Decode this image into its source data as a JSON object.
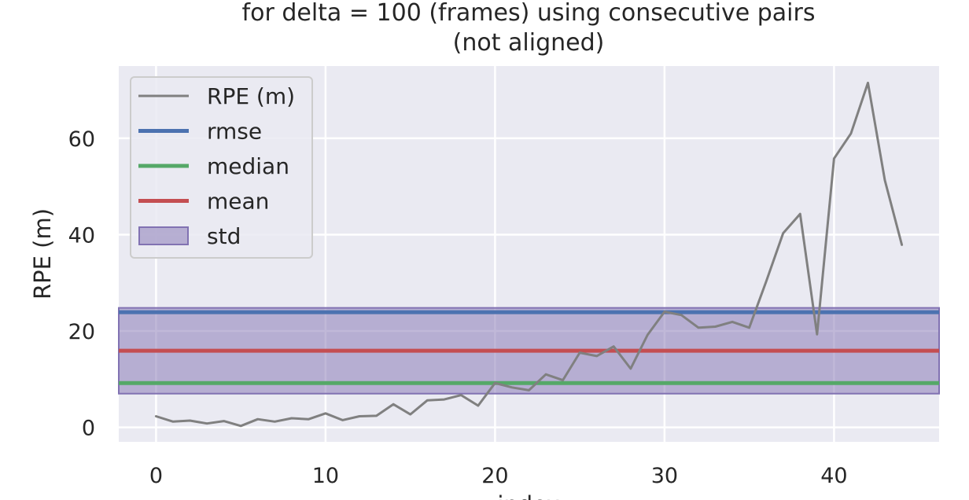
{
  "chart_data": {
    "type": "line",
    "title_lines": [
      "for delta = 100 (frames) using consecutive pairs",
      "(not aligned)"
    ],
    "xlabel": "index",
    "ylabel": "RPE (m)",
    "xlim": [
      -2.2,
      46.2
    ],
    "ylim": [
      -3,
      75
    ],
    "xticks": [
      0,
      10,
      20,
      30,
      40
    ],
    "yticks": [
      0,
      20,
      40,
      60
    ],
    "grid": true,
    "legend_position": "upper-left",
    "series": [
      {
        "name": "RPE (m)",
        "color": "#808080",
        "x": [
          0,
          1,
          2,
          3,
          4,
          5,
          6,
          7,
          8,
          9,
          10,
          11,
          12,
          13,
          14,
          15,
          16,
          17,
          18,
          19,
          20,
          21,
          22,
          23,
          24,
          25,
          26,
          27,
          28,
          29,
          30,
          31,
          32,
          33,
          34,
          35,
          36,
          37,
          38,
          39,
          40,
          41,
          42,
          43,
          44
        ],
        "y": [
          2.3,
          1.2,
          1.4,
          0.8,
          1.3,
          0.3,
          1.7,
          1.2,
          1.9,
          1.7,
          2.9,
          1.5,
          2.3,
          2.4,
          4.8,
          2.7,
          5.6,
          5.8,
          6.7,
          4.5,
          9.2,
          8.3,
          7.7,
          11.0,
          9.8,
          15.5,
          14.8,
          16.8,
          12.2,
          19.2,
          24.0,
          23.3,
          20.7,
          20.9,
          21.9,
          20.7,
          30.3,
          40.3,
          44.3,
          19.3,
          55.8,
          61.0,
          71.5,
          51.3,
          37.9
        ]
      }
    ],
    "statistics": [
      {
        "name": "rmse",
        "value": 23.9,
        "color": "#4c72b0"
      },
      {
        "name": "median",
        "value": 9.2,
        "color": "#55a868"
      },
      {
        "name": "mean",
        "value": 15.9,
        "color": "#c44e52"
      }
    ],
    "std_band": {
      "name": "std",
      "low": 7.0,
      "high": 24.8,
      "color": "#8172b2"
    }
  }
}
